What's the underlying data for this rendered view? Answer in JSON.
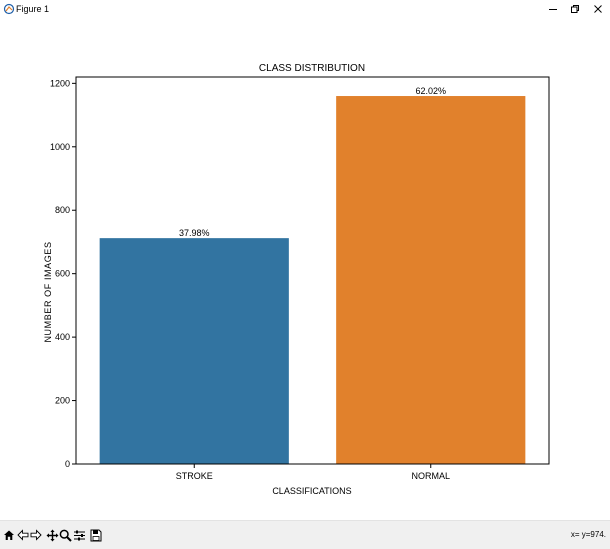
{
  "window": {
    "title": "Figure 1",
    "icons": [
      "app-icon",
      "minimize-icon",
      "restore-icon",
      "close-icon"
    ]
  },
  "toolbar": {
    "icons": [
      "home-icon",
      "back-icon",
      "forward-icon",
      "pan-icon",
      "zoom-icon",
      "configure-subplots-icon",
      "save-icon"
    ],
    "coordinate_readout": "x= y=974."
  },
  "chart_data": {
    "type": "bar",
    "title": "CLASS DISTRIBUTION",
    "xlabel": "CLASSIFICATIONS",
    "ylabel": "NUMBER OF IMAGES",
    "categories": [
      "STROKE",
      "NORMAL"
    ],
    "values": [
      712,
      1160
    ],
    "data_labels": [
      "37.98%",
      "62.02%"
    ],
    "colors": [
      "#3274a1",
      "#e1812c"
    ],
    "ylim": [
      0,
      1220
    ],
    "yticks": [
      0,
      200,
      400,
      600,
      800,
      1000,
      1200
    ],
    "grid": false,
    "legend": "none"
  }
}
